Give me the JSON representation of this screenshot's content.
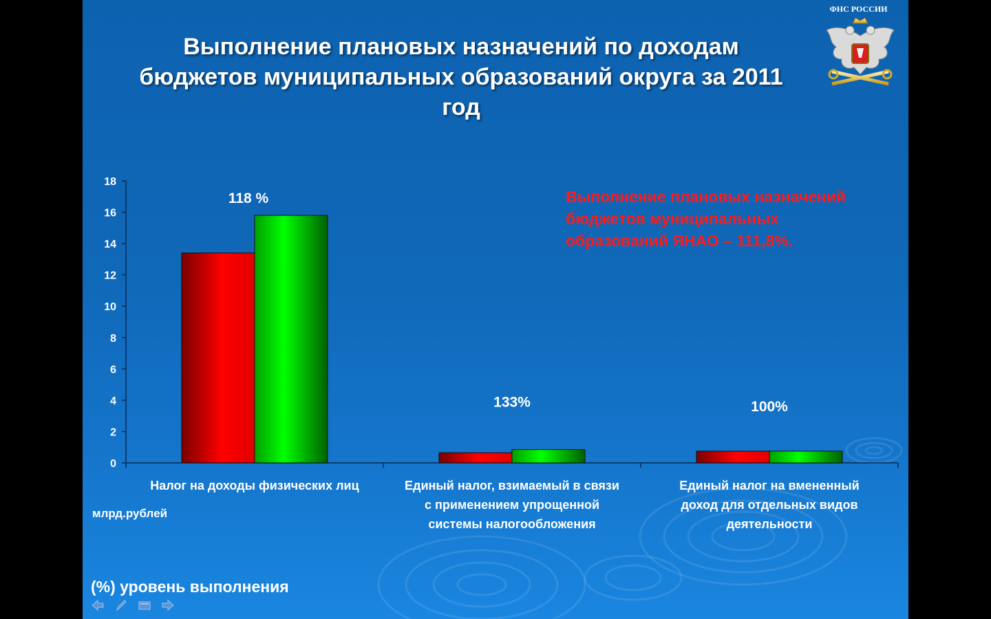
{
  "slide": {
    "title": "Выполнение плановых назначений по доходам бюджетов муниципальных образований округа за 2011 год",
    "logo_text": "ФНС РОССИИ",
    "unit_label": "млрд.рублей",
    "annotation": "Выполнение плановых назначений бюджетов муниципальных образований ЯНАО – 111,8%.",
    "legend_note": "(%) уровень выполнения",
    "colors": {
      "background": "#1068b8",
      "plan": "#ff0000",
      "actual": "#00ee00",
      "annotation": "#ff1a1a"
    },
    "nav": [
      {
        "icon": "arrow-left-icon"
      },
      {
        "icon": "pen-icon"
      },
      {
        "icon": "screen-icon"
      },
      {
        "icon": "arrow-right-icon"
      }
    ]
  },
  "chart_data": {
    "type": "bar",
    "categories": [
      [
        "Налог на доходы физических лиц"
      ],
      [
        "Единый налог, взимаемый в связи",
        "с применением упрощенной",
        "системы налогообложения"
      ],
      [
        "Единый налог на вмененный",
        "доход для отдельных видов",
        "деятельности"
      ]
    ],
    "series": [
      {
        "values": [
          13.4,
          0.65,
          0.75
        ],
        "color": "#ff0000"
      },
      {
        "values": [
          15.8,
          0.85,
          0.75
        ],
        "color": "#00ee00"
      }
    ],
    "percent_labels": [
      "118 %",
      "133%",
      "100%"
    ],
    "ylim": [
      0,
      18
    ],
    "yticks": [
      0,
      2,
      4,
      6,
      8,
      10,
      12,
      14,
      16,
      18
    ],
    "grid": false,
    "legend": "none"
  }
}
